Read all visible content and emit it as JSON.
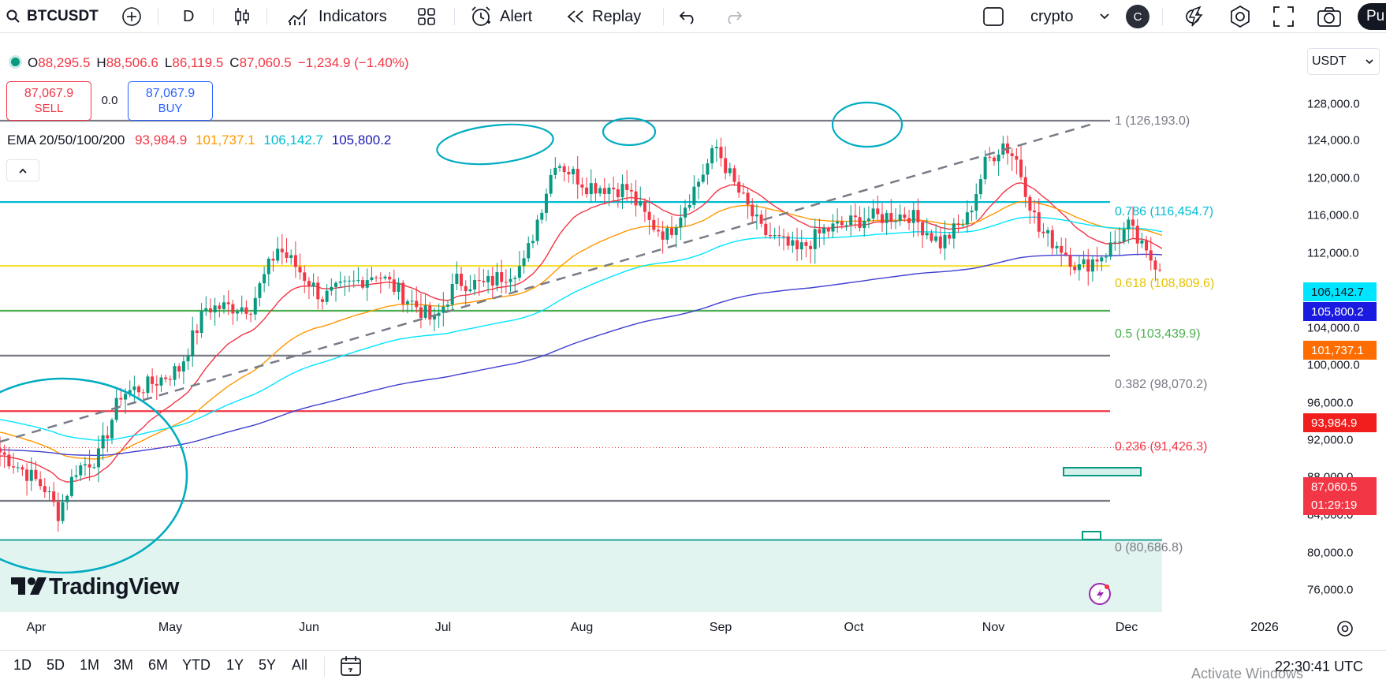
{
  "toolbar": {
    "symbol": "BTCUSDT",
    "interval": "D",
    "indicators_label": "Indicators",
    "alert_label": "Alert",
    "replay_label": "Replay",
    "layout_name": "crypto",
    "avatar_letter": "C",
    "publish_label": "Pu"
  },
  "legend": {
    "open_label": "O",
    "open": "88,295.5",
    "high_label": "H",
    "high": "88,506.6",
    "low_label": "L",
    "low": "86,119.5",
    "close_label": "C",
    "close": "87,060.5",
    "change": "−1,234.9 (−1.40%)",
    "sell_price": "87,067.9",
    "sell_label": "SELL",
    "spread": "0.0",
    "buy_price": "87,067.9",
    "buy_label": "BUY",
    "ema_title": "EMA 20/50/100/200",
    "ema20": "93,984.9",
    "ema50": "101,737.1",
    "ema100": "106,142.7",
    "ema200": "105,800.2"
  },
  "fib_levels": [
    {
      "label": "1 (126,193.0)",
      "value": 126193.0,
      "color": "#787b86"
    },
    {
      "label": "0.786 (116,454.7)",
      "value": 116454.7,
      "color": "#00bcd4"
    },
    {
      "label": "0.618 (108,809.6)",
      "value": 108809.6,
      "color": "#f6e03a"
    },
    {
      "label": "0.5 (103,439.9)",
      "value": 103439.9,
      "color": "#4caf50"
    },
    {
      "label": "0.382 (98,070.2)",
      "value": 98070.2,
      "color": "#787b86"
    },
    {
      "label": "0.236 (91,426.3)",
      "value": 91426.3,
      "color": "#f23645"
    },
    {
      "label": "0 (80,686.8)",
      "value": 80686.8,
      "color": "#787b86"
    }
  ],
  "price_axis": {
    "currency": "USDT",
    "ticks": [
      "128,000.0",
      "124,000.0",
      "120,000.0",
      "116,000.0",
      "112,000.0",
      "104,000.0",
      "100,000.0",
      "96,000.0",
      "92,000.0",
      "88,000.0",
      "84,000.0",
      "80,000.0",
      "76,000.0"
    ],
    "ema100_label": "106,142.7",
    "ema200_label": "105,800.2",
    "ema50_label": "101,737.1",
    "ema20_label": "93,984.9",
    "last_price": "87,060.5",
    "countdown": "01:29:19"
  },
  "time_axis": [
    "Apr",
    "May",
    "Jun",
    "Jul",
    "Aug",
    "Sep",
    "Oct",
    "Nov",
    "Dec",
    "2026"
  ],
  "ranges": [
    "1D",
    "5D",
    "1M",
    "3M",
    "6M",
    "YTD",
    "1Y",
    "5Y",
    "All"
  ],
  "colors": {
    "up": "#089981",
    "down": "#f23645",
    "ema20": "#f23645",
    "ema50": "#ff9800",
    "ema100": "#00e5ff",
    "ema200": "#3f3fd0",
    "markup": "#00acc1",
    "trend": "#787b86"
  },
  "branding": "TradingView",
  "watermark": "Activate Windows",
  "clock": "22:30:41 UTC"
}
